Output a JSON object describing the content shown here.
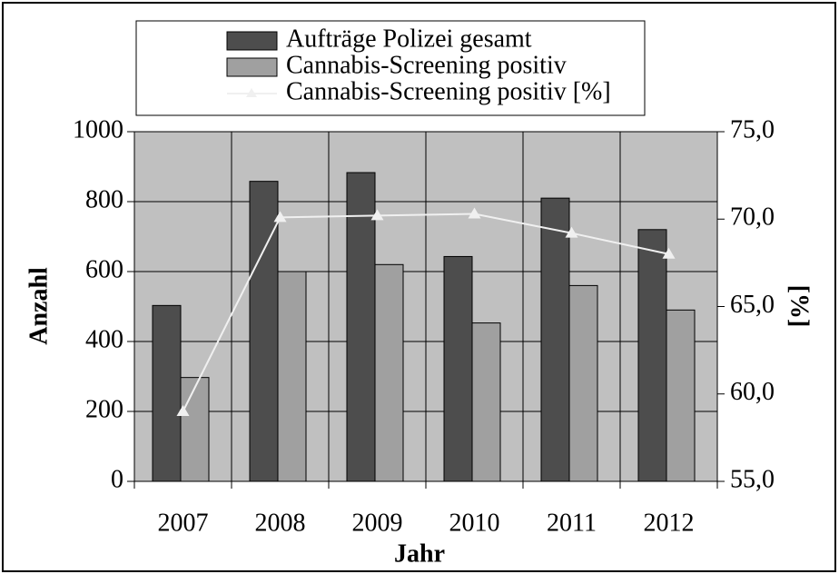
{
  "chart_data": {
    "type": "bar",
    "categories": [
      "2007",
      "2008",
      "2009",
      "2010",
      "2011",
      "2012"
    ],
    "x_label": "Jahr",
    "y_label": "Anzahl",
    "y2_label": "[%]",
    "series": [
      {
        "name": "Aufträge Polizei gesamt",
        "color": "#4d4d4d",
        "values": [
          503,
          858,
          883,
          643,
          810,
          720
        ]
      },
      {
        "name": "Cannabis-Screening positiv",
        "color": "#a0a0a0",
        "values": [
          297,
          600,
          620,
          453,
          560,
          490
        ]
      },
      {
        "name": "Cannabis-Screening positiv [%]",
        "color": "#f0f0f0",
        "type": "line",
        "axis": "y2",
        "values": [
          59.0,
          70.1,
          70.2,
          70.3,
          69.2,
          68.0
        ]
      }
    ],
    "ylim": [
      0,
      1000
    ],
    "yticks": [
      0,
      200,
      400,
      600,
      800,
      1000
    ],
    "y2lim": [
      55,
      75
    ],
    "y2ticks": [
      {
        "value": 55,
        "label": "55,0"
      },
      {
        "value": 60,
        "label": "60,0"
      },
      {
        "value": 65,
        "label": "65,0"
      },
      {
        "value": 70,
        "label": "70,0"
      },
      {
        "value": 75,
        "label": "75,0"
      }
    ],
    "grid": true,
    "legend": "top"
  }
}
